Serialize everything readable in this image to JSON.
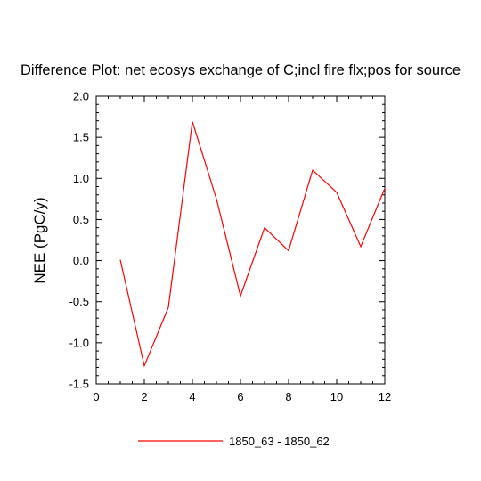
{
  "chart_data": {
    "type": "line",
    "title": "Difference Plot: net ecosys exchange of C;incl fire flx;pos for source",
    "xlabel": "",
    "ylabel": "NEE  (PgC/y)",
    "xlim": [
      0,
      12
    ],
    "ylim": [
      -1.5,
      2.0
    ],
    "xticks": [
      0,
      2,
      4,
      6,
      8,
      10,
      12
    ],
    "xtick_labels": [
      "0",
      "2",
      "4",
      "6",
      "8",
      "10",
      "12"
    ],
    "yticks": [
      -1.5,
      -1.0,
      -0.5,
      0.0,
      0.5,
      1.0,
      1.5,
      2.0
    ],
    "ytick_labels": [
      "-1.5",
      "-1.0",
      "-0.5",
      "0.0",
      "0.5",
      "1.0",
      "1.5",
      "2.0"
    ],
    "grid": false,
    "legend_position": "bottom",
    "series": [
      {
        "name": "1850_63 - 1850_62",
        "color": "#ff0000",
        "x": [
          1,
          2,
          3,
          4,
          5,
          6,
          7,
          8,
          9,
          10,
          11,
          12
        ],
        "y": [
          0.01,
          -1.28,
          -0.57,
          1.69,
          0.75,
          -0.43,
          0.4,
          0.12,
          1.1,
          0.83,
          0.17,
          0.88
        ]
      }
    ]
  }
}
